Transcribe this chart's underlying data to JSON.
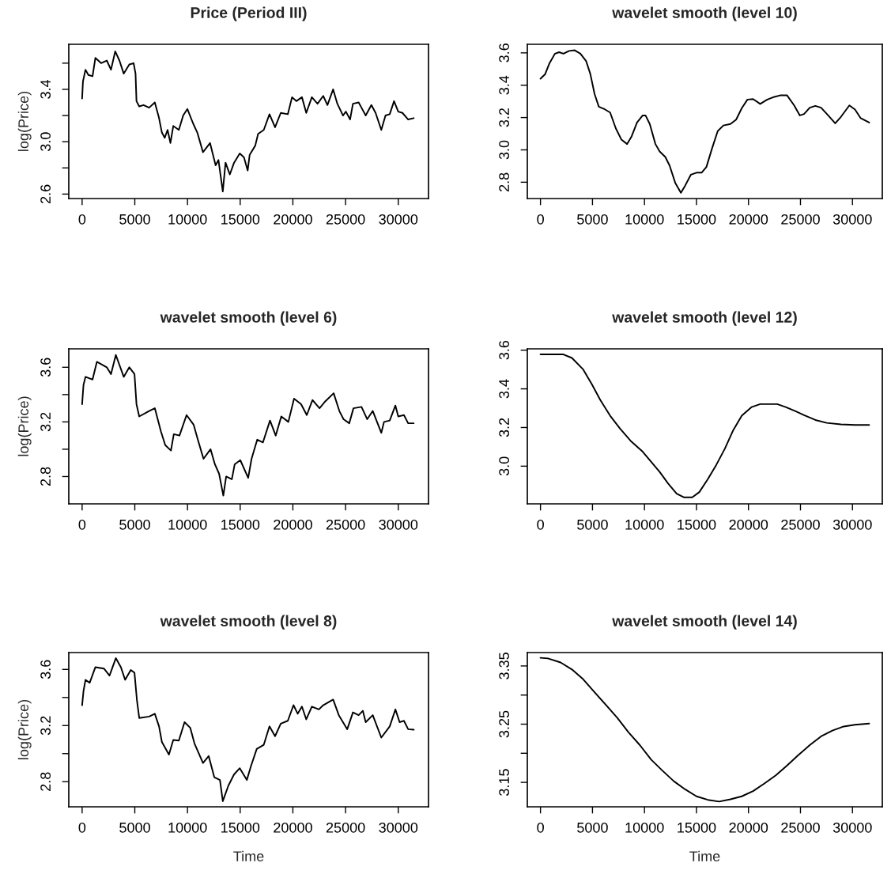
{
  "chart_data": [
    {
      "type": "line",
      "title": "Price (Period III)",
      "ylabel": "log(Price)",
      "xlim": [
        -1265,
        32870
      ],
      "ylim": [
        2.566,
        3.744
      ],
      "xticks": [
        0,
        5000,
        10000,
        15000,
        20000,
        25000,
        30000
      ],
      "yticks": [
        2.6,
        {
          "value": 2.8,
          "label": null
        },
        {
          "value": 3.0,
          "label": "3.0"
        },
        {
          "value": 3.2,
          "label": null
        },
        3.4,
        {
          "value": 3.6,
          "label": null
        }
      ],
      "grid": false,
      "legend": false,
      "series": [
        {
          "color": "#000000",
          "x": [
            0,
            80,
            320,
            590,
            990,
            1260,
            1800,
            2340,
            2740,
            3140,
            3540,
            3950,
            4480,
            4890,
            5070,
            5160,
            5420,
            5830,
            6360,
            6900,
            7300,
            7570,
            7840,
            8110,
            8380,
            8650,
            9180,
            9590,
            9990,
            10530,
            10930,
            11470,
            12140,
            12670,
            12940,
            13350,
            13610,
            14020,
            14420,
            14960,
            15360,
            15710,
            15900,
            16430,
            16700,
            17240,
            17780,
            18310,
            18850,
            19520,
            19920,
            20330,
            20860,
            21270,
            21800,
            22340,
            22880,
            23280,
            23820,
            24220,
            24760,
            25030,
            25430,
            25700,
            26240,
            26510,
            26910,
            27450,
            27850,
            28390,
            28790,
            29190,
            29600,
            30000,
            30400,
            30940,
            31470
          ],
          "values": [
            3.33,
            3.46,
            3.55,
            3.51,
            3.5,
            3.64,
            3.6,
            3.62,
            3.55,
            3.69,
            3.62,
            3.52,
            3.59,
            3.6,
            3.52,
            3.31,
            3.27,
            3.28,
            3.26,
            3.3,
            3.18,
            3.07,
            3.03,
            3.09,
            2.99,
            3.12,
            3.09,
            3.2,
            3.25,
            3.14,
            3.07,
            2.92,
            2.99,
            2.82,
            2.86,
            2.62,
            2.84,
            2.75,
            2.84,
            2.91,
            2.88,
            2.78,
            2.9,
            2.97,
            3.06,
            3.09,
            3.21,
            3.11,
            3.22,
            3.21,
            3.34,
            3.31,
            3.34,
            3.22,
            3.34,
            3.29,
            3.35,
            3.28,
            3.4,
            3.29,
            3.2,
            3.23,
            3.17,
            3.29,
            3.3,
            3.26,
            3.2,
            3.28,
            3.22,
            3.09,
            3.2,
            3.21,
            3.31,
            3.23,
            3.22,
            3.17,
            3.18
          ]
        }
      ]
    },
    {
      "type": "line",
      "title": "wavelet smooth (level 10)",
      "xlim": [
        -1265,
        32870
      ],
      "ylim": [
        2.699,
        3.653
      ],
      "xticks": [
        0,
        5000,
        10000,
        15000,
        20000,
        25000,
        30000
      ],
      "yticks": [
        2.8,
        {
          "value": 3.0,
          "label": "3.0"
        },
        3.2,
        3.4,
        3.6
      ],
      "grid": false,
      "legend": false,
      "series": [
        {
          "color": "#000000",
          "x": [
            0,
            436,
            844,
            1389,
            1797,
            2205,
            2750,
            3294,
            3839,
            4383,
            4792,
            5200,
            5609,
            6153,
            6698,
            7242,
            7787,
            8331,
            8740,
            9284,
            9829,
            10101,
            10509,
            11053,
            11462,
            12006,
            12414,
            12959,
            13503,
            13912,
            14456,
            15001,
            15491,
            15954,
            16498,
            17043,
            17587,
            18268,
            18813,
            19357,
            19902,
            20447,
            21127,
            21808,
            22353,
            23033,
            23714,
            24395,
            24939,
            25348,
            25892,
            26437,
            26981,
            27662,
            28343,
            28887,
            29704,
            30248,
            30793,
            31609
          ],
          "values": [
            3.44,
            3.467,
            3.533,
            3.595,
            3.604,
            3.595,
            3.612,
            3.616,
            3.595,
            3.55,
            3.47,
            3.346,
            3.267,
            3.252,
            3.231,
            3.133,
            3.063,
            3.036,
            3.08,
            3.169,
            3.213,
            3.213,
            3.16,
            3.036,
            2.99,
            2.956,
            2.903,
            2.796,
            2.734,
            2.779,
            2.846,
            2.859,
            2.859,
            2.894,
            3.009,
            3.116,
            3.151,
            3.16,
            3.187,
            3.258,
            3.311,
            3.314,
            3.284,
            3.311,
            3.325,
            3.337,
            3.337,
            3.275,
            3.213,
            3.222,
            3.261,
            3.272,
            3.261,
            3.213,
            3.164,
            3.204,
            3.275,
            3.249,
            3.196,
            3.169
          ]
        }
      ]
    },
    {
      "type": "line",
      "title": "wavelet smooth (level 6)",
      "ylabel": "log(Price)",
      "xlim": [
        -1265,
        32870
      ],
      "ylim": [
        2.6,
        3.735
      ],
      "xticks": [
        0,
        5000,
        10000,
        15000,
        20000,
        25000,
        30000
      ],
      "yticks": [
        2.8,
        {
          "value": 3.0,
          "label": null
        },
        3.2,
        {
          "value": 3.4,
          "label": null
        },
        3.6
      ],
      "grid": false,
      "legend": false,
      "series": [
        {
          "color": "#000000",
          "x": [
            0,
            130,
            320,
            990,
            1400,
            2340,
            2740,
            3200,
            3950,
            4480,
            4970,
            5160,
            5420,
            6360,
            6900,
            7480,
            7890,
            8430,
            8700,
            9240,
            9910,
            10580,
            10980,
            11520,
            12190,
            12600,
            13000,
            13400,
            13670,
            14210,
            14480,
            15010,
            15760,
            16080,
            16620,
            17160,
            17830,
            18370,
            18900,
            19570,
            20110,
            20780,
            21320,
            21860,
            22530,
            23070,
            23870,
            24410,
            24810,
            25350,
            25750,
            26510,
            27050,
            27580,
            28390,
            28650,
            29190,
            29730,
            30000,
            30540,
            30940,
            31470
          ],
          "values": [
            3.33,
            3.47,
            3.53,
            3.51,
            3.64,
            3.6,
            3.55,
            3.69,
            3.53,
            3.6,
            3.55,
            3.33,
            3.24,
            3.28,
            3.3,
            3.13,
            3.03,
            2.99,
            3.11,
            3.1,
            3.25,
            3.18,
            3.07,
            2.93,
            3.0,
            2.89,
            2.82,
            2.66,
            2.8,
            2.78,
            2.89,
            2.92,
            2.79,
            2.93,
            3.07,
            3.05,
            3.21,
            3.1,
            3.24,
            3.2,
            3.37,
            3.33,
            3.25,
            3.36,
            3.3,
            3.35,
            3.41,
            3.28,
            3.22,
            3.19,
            3.3,
            3.31,
            3.22,
            3.28,
            3.12,
            3.2,
            3.21,
            3.32,
            3.24,
            3.25,
            3.19,
            3.19
          ]
        }
      ]
    },
    {
      "type": "line",
      "title": "wavelet smooth (level 12)",
      "xlim": [
        -1265,
        32870
      ],
      "ylim": [
        2.805,
        3.607
      ],
      "xticks": [
        0,
        5000,
        10000,
        15000,
        20000,
        25000,
        30000
      ],
      "yticks": [
        {
          "value": 3.0,
          "label": "3.0"
        },
        3.2,
        3.4,
        3.6
      ],
      "grid": false,
      "legend": false,
      "series": [
        {
          "color": "#000000",
          "x": [
            0,
            2205,
            3022,
            4111,
            4928,
            5745,
            6698,
            7651,
            8740,
            9829,
            10645,
            11462,
            12279,
            13096,
            13776,
            14593,
            15274,
            16091,
            16907,
            17724,
            18541,
            19357,
            20310,
            21127,
            21808,
            22761,
            23578,
            24531,
            25348,
            26437,
            27526,
            28887,
            30248,
            31609
          ],
          "values": [
            3.578,
            3.578,
            3.56,
            3.5,
            3.425,
            3.343,
            3.261,
            3.194,
            3.127,
            3.075,
            3.022,
            2.97,
            2.91,
            2.858,
            2.839,
            2.839,
            2.866,
            2.933,
            3.007,
            3.09,
            3.187,
            3.261,
            3.306,
            3.321,
            3.321,
            3.321,
            3.306,
            3.284,
            3.264,
            3.239,
            3.224,
            3.216,
            3.213,
            3.213
          ]
        }
      ]
    },
    {
      "type": "line",
      "title": "wavelet smooth (level 8)",
      "xlabel": "Time",
      "ylabel": "log(Price)",
      "xlim": [
        -1265,
        32870
      ],
      "ylim": [
        2.621,
        3.72
      ],
      "xticks": [
        0,
        5000,
        10000,
        15000,
        20000,
        25000,
        30000
      ],
      "yticks": [
        2.8,
        {
          "value": 3.0,
          "label": null
        },
        3.2,
        {
          "value": 3.4,
          "label": null
        },
        3.6
      ],
      "grid": false,
      "legend": false,
      "series": [
        {
          "color": "#000000",
          "x": [
            0,
            130,
            320,
            720,
            1260,
            2070,
            2600,
            3200,
            3680,
            4080,
            4620,
            4970,
            5210,
            5420,
            6360,
            6900,
            7300,
            7570,
            8240,
            8650,
            9180,
            9720,
            10260,
            10660,
            11470,
            12010,
            12540,
            13080,
            13350,
            13880,
            14420,
            14960,
            15630,
            16030,
            16570,
            17240,
            17780,
            18310,
            18850,
            19520,
            20060,
            20460,
            20860,
            21270,
            21800,
            22470,
            22880,
            23820,
            24360,
            25160,
            25700,
            26240,
            26640,
            26910,
            27580,
            28390,
            29190,
            29730,
            30130,
            30540,
            30940,
            31470
          ],
          "values": [
            3.345,
            3.445,
            3.525,
            3.505,
            3.616,
            3.606,
            3.556,
            3.68,
            3.616,
            3.526,
            3.596,
            3.576,
            3.375,
            3.254,
            3.264,
            3.284,
            3.194,
            3.083,
            2.993,
            3.097,
            3.093,
            3.224,
            3.184,
            3.073,
            2.933,
            2.983,
            2.832,
            2.812,
            2.661,
            2.772,
            2.852,
            2.896,
            2.812,
            2.913,
            3.033,
            3.063,
            3.194,
            3.124,
            3.214,
            3.234,
            3.345,
            3.284,
            3.335,
            3.244,
            3.335,
            3.315,
            3.345,
            3.385,
            3.274,
            3.174,
            3.294,
            3.274,
            3.305,
            3.224,
            3.274,
            3.114,
            3.194,
            3.315,
            3.224,
            3.234,
            3.174,
            3.17
          ]
        }
      ]
    },
    {
      "type": "line",
      "title": "wavelet smooth (level 14)",
      "xlabel": "Time",
      "xlim": [
        -1265,
        32870
      ],
      "ylim": [
        3.108,
        3.373
      ],
      "xticks": [
        0,
        5000,
        10000,
        15000,
        20000,
        25000,
        30000
      ],
      "yticks": [
        3.15,
        {
          "value": 3.2,
          "label": null
        },
        3.25,
        {
          "value": 3.3,
          "label": null
        },
        3.35
      ],
      "grid": false,
      "legend": false,
      "series": [
        {
          "color": "#000000",
          "x": [
            0,
            708,
            1933,
            3022,
            4111,
            5200,
            6289,
            7379,
            8468,
            9557,
            10645,
            11734,
            12823,
            13912,
            15001,
            16091,
            17179,
            18268,
            19357,
            20447,
            21536,
            22625,
            23714,
            24803,
            25892,
            26981,
            28070,
            29159,
            30248,
            31609
          ],
          "values": [
            3.364,
            3.363,
            3.356,
            3.344,
            3.327,
            3.305,
            3.283,
            3.261,
            3.236,
            3.214,
            3.189,
            3.17,
            3.152,
            3.138,
            3.126,
            3.12,
            3.117,
            3.121,
            3.126,
            3.135,
            3.148,
            3.162,
            3.179,
            3.197,
            3.214,
            3.229,
            3.239,
            3.246,
            3.249,
            3.251
          ]
        }
      ]
    }
  ]
}
